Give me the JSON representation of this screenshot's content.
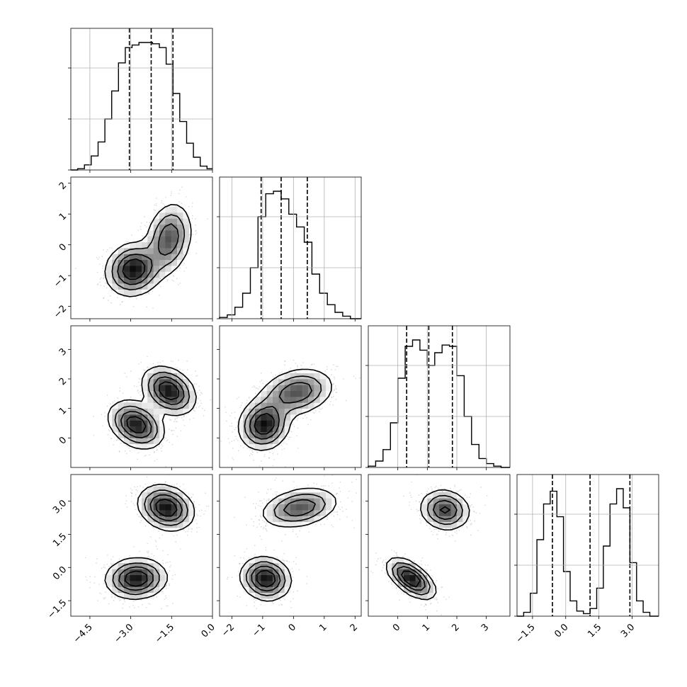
{
  "chart_data": {
    "type": "corner",
    "grid": true,
    "parameters": [
      {
        "range": [
          -5.2,
          0.0
        ],
        "ticks": [
          -4.5,
          -3.0,
          -1.5,
          0.0
        ],
        "tick_labels": [
          "−4.5",
          "−3.0",
          "−1.5",
          "0.0"
        ],
        "quantiles": [
          -3.05,
          -2.25,
          -1.45
        ],
        "histogram": {
          "bin_edges": [
            -5.2,
            -4.95,
            -4.7,
            -4.45,
            -4.2,
            -3.95,
            -3.7,
            -3.45,
            -3.2,
            -2.95,
            -2.7,
            -2.45,
            -2.2,
            -1.95,
            -1.7,
            -1.45,
            -1.2,
            -0.95,
            -0.7,
            -0.45,
            -0.2,
            0.0
          ],
          "counts": [
            0,
            0.01,
            0.04,
            0.11,
            0.22,
            0.4,
            0.62,
            0.84,
            0.96,
            0.98,
            1.0,
            1.0,
            0.99,
            0.96,
            0.83,
            0.6,
            0.38,
            0.21,
            0.1,
            0.03,
            0.01
          ]
        }
      },
      {
        "range": [
          -2.4,
          2.2
        ],
        "ticks": [
          -2,
          -1,
          0,
          1,
          2
        ],
        "tick_labels": [
          "−2",
          "−1",
          "0",
          "1",
          "2"
        ],
        "quantiles": [
          -1.05,
          -0.4,
          0.45
        ],
        "histogram": {
          "bin_edges": [
            -2.4,
            -2.15,
            -1.9,
            -1.65,
            -1.4,
            -1.15,
            -0.9,
            -0.65,
            -0.4,
            -0.15,
            0.1,
            0.35,
            0.6,
            0.85,
            1.1,
            1.35,
            1.6,
            1.85,
            2.2
          ],
          "counts": [
            0.01,
            0.03,
            0.09,
            0.2,
            0.4,
            0.8,
            0.98,
            1.0,
            0.94,
            0.82,
            0.72,
            0.6,
            0.35,
            0.2,
            0.11,
            0.05,
            0.02,
            0.0
          ]
        }
      },
      {
        "range": [
          -1.0,
          3.8
        ],
        "ticks": [
          0,
          1,
          2,
          3
        ],
        "tick_labels": [
          "0",
          "1",
          "2",
          "3"
        ],
        "quantiles": [
          0.3,
          1.05,
          1.85
        ],
        "histogram": {
          "bin_edges": [
            -1.0,
            -0.75,
            -0.5,
            -0.25,
            0.0,
            0.25,
            0.5,
            0.75,
            1.0,
            1.25,
            1.5,
            1.75,
            2.0,
            2.25,
            2.5,
            2.75,
            3.0,
            3.25,
            3.5,
            3.8
          ],
          "counts": [
            0.01,
            0.05,
            0.14,
            0.35,
            0.7,
            0.95,
            1.0,
            0.92,
            0.8,
            0.9,
            0.96,
            0.95,
            0.72,
            0.4,
            0.18,
            0.07,
            0.03,
            0.01,
            0.0
          ]
        }
      },
      {
        "range": [
          -2.2,
          4.2
        ],
        "ticks": [
          -1.5,
          0.0,
          1.5,
          3.0
        ],
        "tick_labels": [
          "−1.5",
          "0.0",
          "1.5",
          "3.0"
        ],
        "quantiles": [
          -0.6,
          1.1,
          2.9
        ],
        "histogram": {
          "bin_edges": [
            -2.2,
            -1.9,
            -1.6,
            -1.3,
            -1.0,
            -0.7,
            -0.4,
            -0.1,
            0.2,
            0.5,
            0.8,
            1.1,
            1.4,
            1.7,
            2.0,
            2.3,
            2.6,
            2.9,
            3.2,
            3.5,
            3.8,
            4.2
          ],
          "counts": [
            0.0,
            0.03,
            0.18,
            0.6,
            0.88,
            0.98,
            0.78,
            0.35,
            0.12,
            0.04,
            0.02,
            0.06,
            0.22,
            0.55,
            0.88,
            1.0,
            0.85,
            0.42,
            0.12,
            0.03,
            0.0
          ]
        }
      }
    ],
    "pairs": [
      {
        "row": 1,
        "col": 0,
        "components": [
          {
            "mean": [
              -2.9,
              -0.8
            ],
            "sd": [
              0.5,
              0.42
            ],
            "rho": 0.1,
            "weight": 0.55
          },
          {
            "mean": [
              -1.6,
              0.2
            ],
            "sd": [
              0.42,
              0.58
            ],
            "rho": 0.2,
            "weight": 0.45
          }
        ]
      },
      {
        "row": 2,
        "col": 0,
        "components": [
          {
            "mean": [
              -2.8,
              0.45
            ],
            "sd": [
              0.5,
              0.4
            ],
            "rho": -0.3,
            "weight": 0.5
          },
          {
            "mean": [
              -1.6,
              1.6
            ],
            "sd": [
              0.48,
              0.4
            ],
            "rho": -0.3,
            "weight": 0.5
          }
        ]
      },
      {
        "row": 2,
        "col": 1,
        "components": [
          {
            "mean": [
              -0.95,
              0.45
            ],
            "sd": [
              0.4,
              0.42
            ],
            "rho": 0.1,
            "weight": 0.5
          },
          {
            "mean": [
              0.1,
              1.55
            ],
            "sd": [
              0.6,
              0.4
            ],
            "rho": 0.25,
            "weight": 0.5
          }
        ]
      },
      {
        "row": 3,
        "col": 0,
        "components": [
          {
            "mean": [
              -2.8,
              -0.5
            ],
            "sd": [
              0.55,
              0.45
            ],
            "rho": 0.05,
            "weight": 0.5
          },
          {
            "mean": [
              -1.7,
              2.7
            ],
            "sd": [
              0.5,
              0.5
            ],
            "rho": -0.2,
            "weight": 0.5
          }
        ]
      },
      {
        "row": 3,
        "col": 1,
        "components": [
          {
            "mean": [
              -0.9,
              -0.5
            ],
            "sd": [
              0.4,
              0.48
            ],
            "rho": -0.1,
            "weight": 0.5
          },
          {
            "mean": [
              0.2,
              2.7
            ],
            "sd": [
              0.62,
              0.45
            ],
            "rho": 0.3,
            "weight": 0.5
          }
        ]
      },
      {
        "row": 3,
        "col": 2,
        "components": [
          {
            "mean": [
              0.45,
              -0.5
            ],
            "sd": [
              0.4,
              0.45
            ],
            "rho": -0.6,
            "weight": 0.5
          },
          {
            "mean": [
              1.6,
              2.6
            ],
            "sd": [
              0.42,
              0.45
            ],
            "rho": -0.1,
            "weight": 0.5
          }
        ]
      }
    ]
  }
}
